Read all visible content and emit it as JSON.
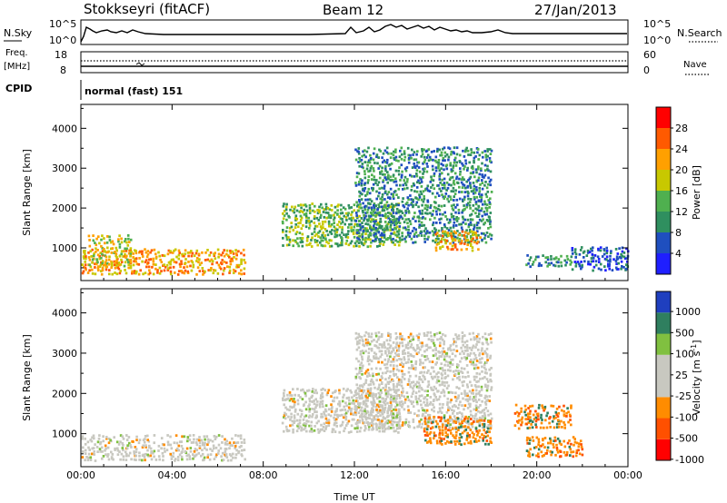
{
  "header": {
    "station": "Stokkseyri (fitACF)",
    "beam": "Beam 12",
    "date": "27/Jan/2013"
  },
  "top_panels": {
    "nsky_label": "N.Sky",
    "nsky_ticks": [
      "10^5",
      "10^0"
    ],
    "nsearch_label": "N.Search",
    "nsearch_ticks": [
      "10^5",
      "10^0"
    ],
    "freq_label_1": "Freq.",
    "freq_label_2": "[MHz]",
    "freq_ticks": [
      "18",
      "8"
    ],
    "nave_label": "Nave",
    "nave_ticks": [
      "60",
      "0"
    ],
    "cpid_label": "CPID",
    "cpid_value": "normal (fast) 151"
  },
  "colors": {
    "power": [
      "#1f1fff",
      "#1f4fbf",
      "#2f8f5f",
      "#4fb04f",
      "#c8c800",
      "#ffa000",
      "#ff5a00",
      "#ff0000"
    ],
    "velocity": [
      "#ff0000",
      "#ff5000",
      "#ff8c00",
      "#c8c8c0",
      "#c8c8c0",
      "#80c040",
      "#2f7f5f",
      "#1f3fbf"
    ]
  },
  "chart_data": [
    {
      "type": "heatmap",
      "title": "",
      "xlabel": "Time UT",
      "ylabel": "Slant Range [km]",
      "xlim": [
        0,
        24
      ],
      "ylim": [
        180,
        4600
      ],
      "x_ticks": [
        "00:00",
        "04:00",
        "08:00",
        "12:00",
        "16:00",
        "20:00",
        "00:00"
      ],
      "y_ticks": [
        "1000",
        "2000",
        "3000",
        "4000"
      ],
      "colorbar_label": "Power [dB]",
      "colorbar_ticks": [
        "4",
        "8",
        "12",
        "16",
        "20",
        "24",
        "28"
      ],
      "scatter_regions": [
        {
          "t0": 0.0,
          "t1": 7.2,
          "r0": 300,
          "r1": 950,
          "value_db": 24
        },
        {
          "t0": 0.3,
          "t1": 2.2,
          "r0": 500,
          "r1": 1300,
          "value_db": 20
        },
        {
          "t0": 8.8,
          "t1": 14.0,
          "r0": 1000,
          "r1": 2100,
          "value_db": 16
        },
        {
          "t0": 12.0,
          "t1": 18.0,
          "r0": 1100,
          "r1": 3500,
          "value_db": 12
        },
        {
          "t0": 15.5,
          "t1": 17.5,
          "r0": 900,
          "r1": 1400,
          "value_db": 24
        },
        {
          "t0": 19.5,
          "t1": 21.5,
          "r0": 500,
          "r1": 800,
          "value_db": 12
        },
        {
          "t0": 21.5,
          "t1": 24.0,
          "r0": 400,
          "r1": 1000,
          "value_db": 8
        }
      ]
    },
    {
      "type": "heatmap",
      "title": "",
      "xlabel": "Time UT",
      "ylabel": "Slant Range [km]",
      "xlim": [
        0,
        24
      ],
      "ylim": [
        180,
        4600
      ],
      "x_ticks": [
        "00:00",
        "04:00",
        "08:00",
        "12:00",
        "16:00",
        "20:00",
        "00:00"
      ],
      "y_ticks": [
        "1000",
        "2000",
        "3000",
        "4000"
      ],
      "colorbar_label": "Velocity [m s^-1]",
      "colorbar_ticks": [
        "1000",
        "500",
        "100",
        "25",
        "-25",
        "-100",
        "-500",
        "-1000"
      ],
      "scatter_regions": [
        {
          "t0": 0.0,
          "t1": 7.2,
          "r0": 300,
          "r1": 950,
          "value_ms": 0
        },
        {
          "t0": 8.8,
          "t1": 14.0,
          "r0": 1000,
          "r1": 2100,
          "value_ms": 0
        },
        {
          "t0": 12.0,
          "t1": 18.0,
          "r0": 1100,
          "r1": 3500,
          "value_ms": 0
        },
        {
          "t0": 15.0,
          "t1": 18.0,
          "r0": 700,
          "r1": 1400,
          "value_ms": -300
        },
        {
          "t0": 19.5,
          "t1": 22.0,
          "r0": 400,
          "r1": 900,
          "value_ms": -300
        },
        {
          "t0": 19.0,
          "t1": 21.5,
          "r0": 1100,
          "r1": 1700,
          "value_ms": -200
        }
      ]
    }
  ]
}
